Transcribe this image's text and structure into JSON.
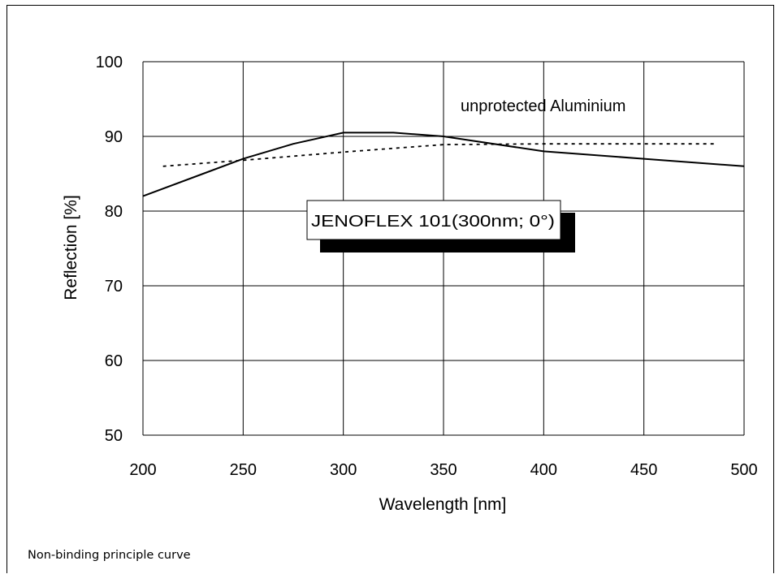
{
  "chart_data": {
    "type": "line",
    "xlabel": "Wavelength [nm]",
    "ylabel": "Reflection [%]",
    "xlim": [
      200,
      500
    ],
    "ylim": [
      50,
      100
    ],
    "x_ticks": [
      200,
      250,
      300,
      350,
      400,
      450,
      500
    ],
    "y_ticks": [
      50,
      60,
      70,
      80,
      90,
      100
    ],
    "grid": true,
    "series": [
      {
        "name": "JENOFLEX 101(300nm; 0°)",
        "style": "solid",
        "color": "#000000",
        "x": [
          200,
          250,
          275,
          300,
          325,
          350,
          400,
          450,
          500
        ],
        "y": [
          82,
          87,
          89,
          90.5,
          90.5,
          90,
          88,
          87,
          86
        ]
      },
      {
        "name": "unprotected Aluminium",
        "style": "dotted",
        "color": "#000000",
        "x": [
          210,
          250,
          300,
          350,
          400,
          450,
          485
        ],
        "y": [
          86,
          86.8,
          87.9,
          88.9,
          89,
          89,
          89
        ]
      }
    ]
  },
  "footnote": "Non-binding principle curve"
}
